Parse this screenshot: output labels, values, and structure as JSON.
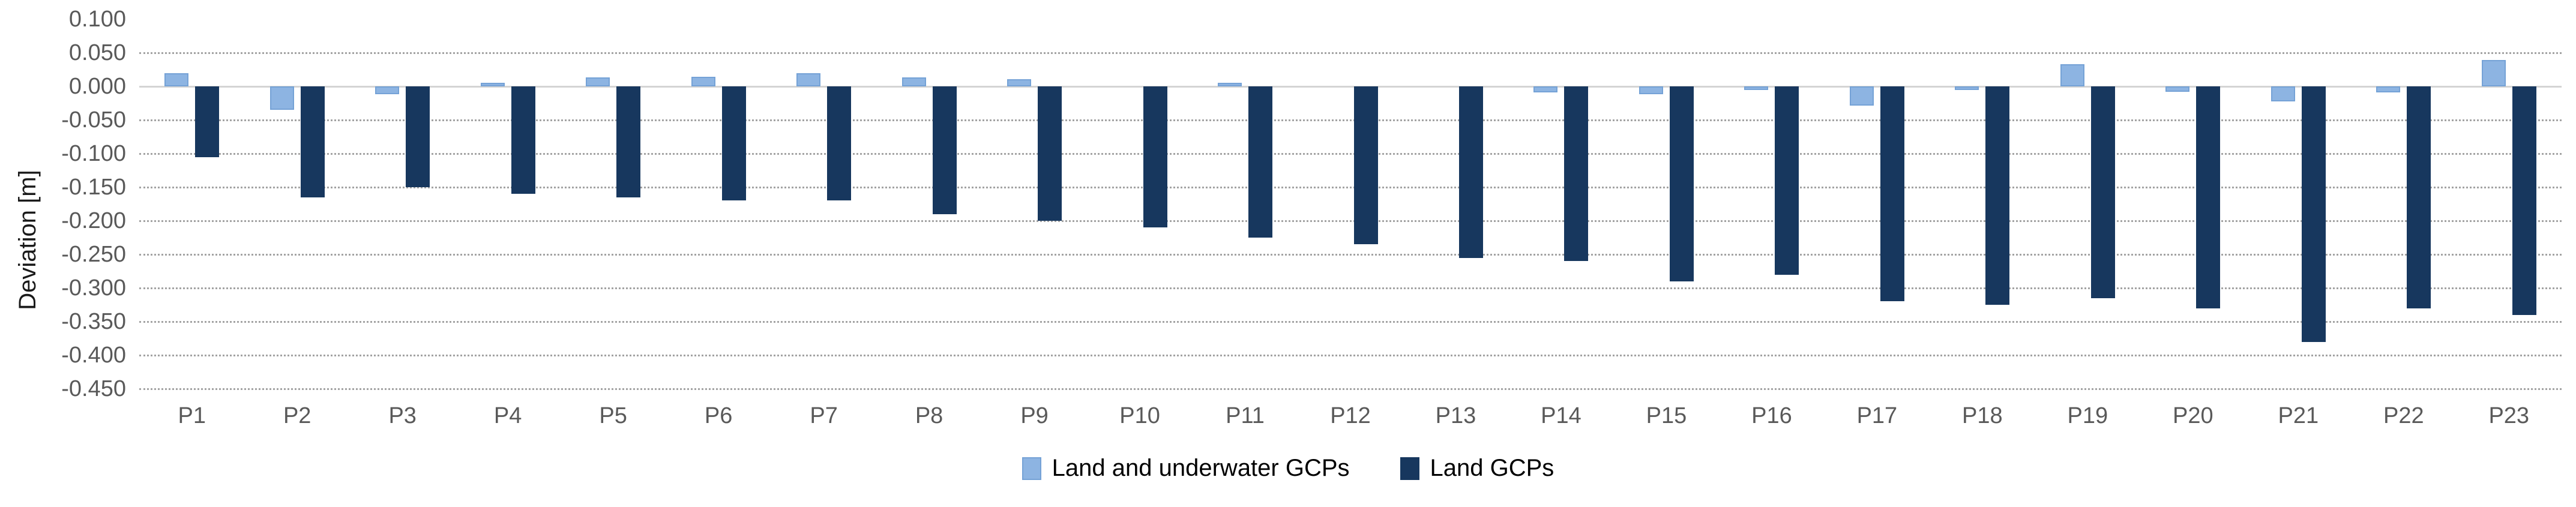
{
  "chart_data": {
    "type": "bar",
    "title": "",
    "xlabel": "",
    "ylabel": "Deviation [m]",
    "categories": [
      "P1",
      "P2",
      "P3",
      "P4",
      "P5",
      "P6",
      "P7",
      "P8",
      "P9",
      "P10",
      "P11",
      "P12",
      "P13",
      "P14",
      "P15",
      "P16",
      "P17",
      "P18",
      "P19",
      "P20",
      "P21",
      "P22",
      "P23"
    ],
    "series": [
      {
        "name": "Land and underwater GCPs",
        "color": "#8DB4E2",
        "border_color": "#75A2D6",
        "values": [
          0.02,
          -0.035,
          -0.012,
          0.005,
          0.013,
          0.014,
          0.02,
          0.013,
          0.011,
          0.0,
          0.005,
          0.0,
          0.0,
          -0.009,
          -0.012,
          -0.005,
          -0.029,
          -0.005,
          0.033,
          -0.008,
          -0.022,
          -0.009,
          0.039
        ]
      },
      {
        "name": "Land GCPs",
        "color": "#17375E",
        "border_color": "#17375E",
        "values": [
          -0.105,
          -0.165,
          -0.15,
          -0.16,
          -0.165,
          -0.17,
          -0.17,
          -0.19,
          -0.2,
          -0.21,
          -0.225,
          -0.235,
          -0.255,
          -0.26,
          -0.29,
          -0.28,
          -0.32,
          -0.325,
          -0.315,
          -0.33,
          -0.38,
          -0.33,
          -0.34
        ]
      }
    ],
    "ylim": [
      -0.45,
      0.1
    ],
    "ytick_step": 0.05,
    "yticks": [
      "0.100",
      "0.050",
      "0.000",
      "-0.050",
      "-0.100",
      "-0.150",
      "-0.200",
      "-0.250",
      "-0.300",
      "-0.350",
      "-0.400",
      "-0.450"
    ],
    "grid": "horizontal dotted, no gridline at top tick, solid line at zero",
    "legend_position": "bottom-center",
    "colors": {
      "tick_label": "#595959",
      "axis_title": "#1a1a1a",
      "gridline": "#a3a3a3",
      "zero_line": "#d4d4d4",
      "background": "#ffffff"
    }
  }
}
